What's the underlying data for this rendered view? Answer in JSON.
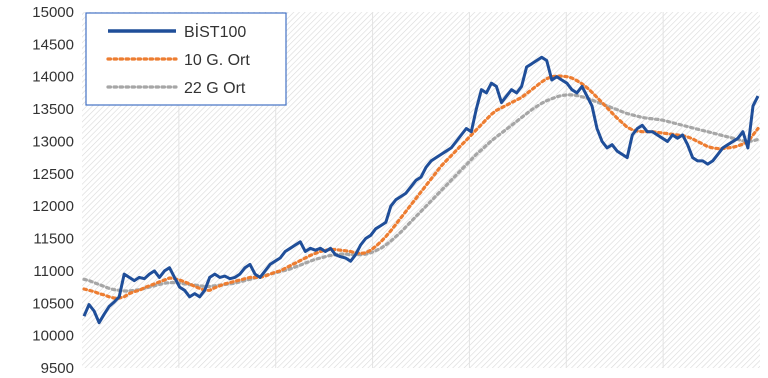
{
  "chart_data": {
    "type": "line",
    "title": "",
    "xlabel": "",
    "ylabel": "",
    "ylim": [
      9500,
      15000
    ],
    "yticks": [
      9500,
      10000,
      10500,
      11000,
      11500,
      12000,
      12500,
      13000,
      13500,
      14000,
      14500,
      15000
    ],
    "grid": "vertical hatched background with vertical gridlines",
    "legend_position": "top-left",
    "series": [
      {
        "name": "BİST100",
        "color": "#1f4e99",
        "style": "solid",
        "values": [
          10300,
          10480,
          10380,
          10200,
          10330,
          10450,
          10520,
          10600,
          10950,
          10900,
          10850,
          10900,
          10880,
          10950,
          11000,
          10900,
          11000,
          11050,
          10900,
          10750,
          10700,
          10600,
          10650,
          10600,
          10700,
          10900,
          10950,
          10900,
          10920,
          10880,
          10900,
          10950,
          11050,
          11100,
          10950,
          10900,
          11000,
          11100,
          11150,
          11200,
          11300,
          11350,
          11400,
          11450,
          11300,
          11350,
          11320,
          11350,
          11300,
          11350,
          11250,
          11220,
          11200,
          11150,
          11250,
          11400,
          11500,
          11550,
          11650,
          11700,
          11750,
          12000,
          12100,
          12150,
          12200,
          12300,
          12400,
          12450,
          12600,
          12700,
          12750,
          12800,
          12850,
          12900,
          13000,
          13100,
          13200,
          13150,
          13500,
          13800,
          13750,
          13900,
          13850,
          13600,
          13700,
          13800,
          13750,
          13850,
          14150,
          14200,
          14250,
          14300,
          14250,
          13950,
          14000,
          13950,
          13900,
          13800,
          13750,
          13850,
          13700,
          13550,
          13200,
          13000,
          12900,
          12950,
          12850,
          12800,
          12750,
          13100,
          13200,
          13250,
          13150,
          13150,
          13100,
          13050,
          13000,
          13100,
          13050,
          13100,
          12950,
          12750,
          12700,
          12700,
          12650,
          12700,
          12800,
          12900,
          12950,
          13000,
          13050,
          13150,
          12900,
          13550,
          13700
        ]
      },
      {
        "name": "10 G. Ort",
        "color": "#ed7d31",
        "style": "dotted",
        "values": [
          10720,
          10700,
          10680,
          10650,
          10630,
          10600,
          10580,
          10580,
          10600,
          10650,
          10680,
          10700,
          10740,
          10770,
          10800,
          10830,
          10860,
          10890,
          10880,
          10860,
          10830,
          10800,
          10760,
          10730,
          10700,
          10700,
          10740,
          10770,
          10800,
          10820,
          10840,
          10860,
          10880,
          10900,
          10900,
          10900,
          10920,
          10950,
          10980,
          11000,
          11040,
          11080,
          11120,
          11160,
          11200,
          11240,
          11270,
          11300,
          11320,
          11330,
          11330,
          11320,
          11310,
          11300,
          11280,
          11270,
          11280,
          11320,
          11380,
          11450,
          11530,
          11620,
          11720,
          11820,
          11920,
          12020,
          12120,
          12220,
          12320,
          12420,
          12520,
          12620,
          12700,
          12780,
          12860,
          12940,
          13020,
          13100,
          13180,
          13260,
          13340,
          13420,
          13480,
          13520,
          13560,
          13600,
          13640,
          13680,
          13740,
          13800,
          13860,
          13920,
          13970,
          14000,
          14010,
          14010,
          14000,
          13980,
          13940,
          13890,
          13830,
          13760,
          13680,
          13600,
          13520,
          13440,
          13360,
          13290,
          13220,
          13180,
          13160,
          13150,
          13150,
          13150,
          13140,
          13130,
          13120,
          13110,
          13100,
          13090,
          13070,
          13040,
          13000,
          12960,
          12920,
          12900,
          12890,
          12890,
          12900,
          12910,
          12930,
          12960,
          13000,
          13100,
          13200
        ]
      },
      {
        "name": "22 G Ort",
        "color": "#a6a6a6",
        "style": "dotted",
        "values": [
          10870,
          10850,
          10820,
          10790,
          10760,
          10730,
          10710,
          10700,
          10690,
          10690,
          10700,
          10710,
          10730,
          10750,
          10770,
          10790,
          10810,
          10820,
          10820,
          10810,
          10800,
          10790,
          10780,
          10770,
          10760,
          10760,
          10770,
          10780,
          10790,
          10800,
          10810,
          10830,
          10850,
          10870,
          10890,
          10910,
          10930,
          10950,
          10970,
          10990,
          11010,
          11030,
          11060,
          11090,
          11120,
          11150,
          11180,
          11200,
          11220,
          11240,
          11250,
          11260,
          11260,
          11250,
          11250,
          11250,
          11260,
          11280,
          11310,
          11350,
          11400,
          11460,
          11530,
          11600,
          11680,
          11760,
          11840,
          11920,
          12000,
          12080,
          12160,
          12240,
          12320,
          12400,
          12480,
          12560,
          12640,
          12720,
          12800,
          12870,
          12940,
          13010,
          13070,
          13130,
          13190,
          13250,
          13310,
          13370,
          13430,
          13490,
          13540,
          13590,
          13630,
          13660,
          13690,
          13710,
          13720,
          13720,
          13710,
          13690,
          13670,
          13640,
          13610,
          13580,
          13550,
          13520,
          13490,
          13460,
          13430,
          13410,
          13390,
          13370,
          13360,
          13350,
          13340,
          13330,
          13310,
          13290,
          13270,
          13250,
          13230,
          13210,
          13190,
          13170,
          13150,
          13130,
          13110,
          13090,
          13070,
          13050,
          13030,
          13010,
          13000,
          13010,
          13030
        ]
      }
    ]
  }
}
